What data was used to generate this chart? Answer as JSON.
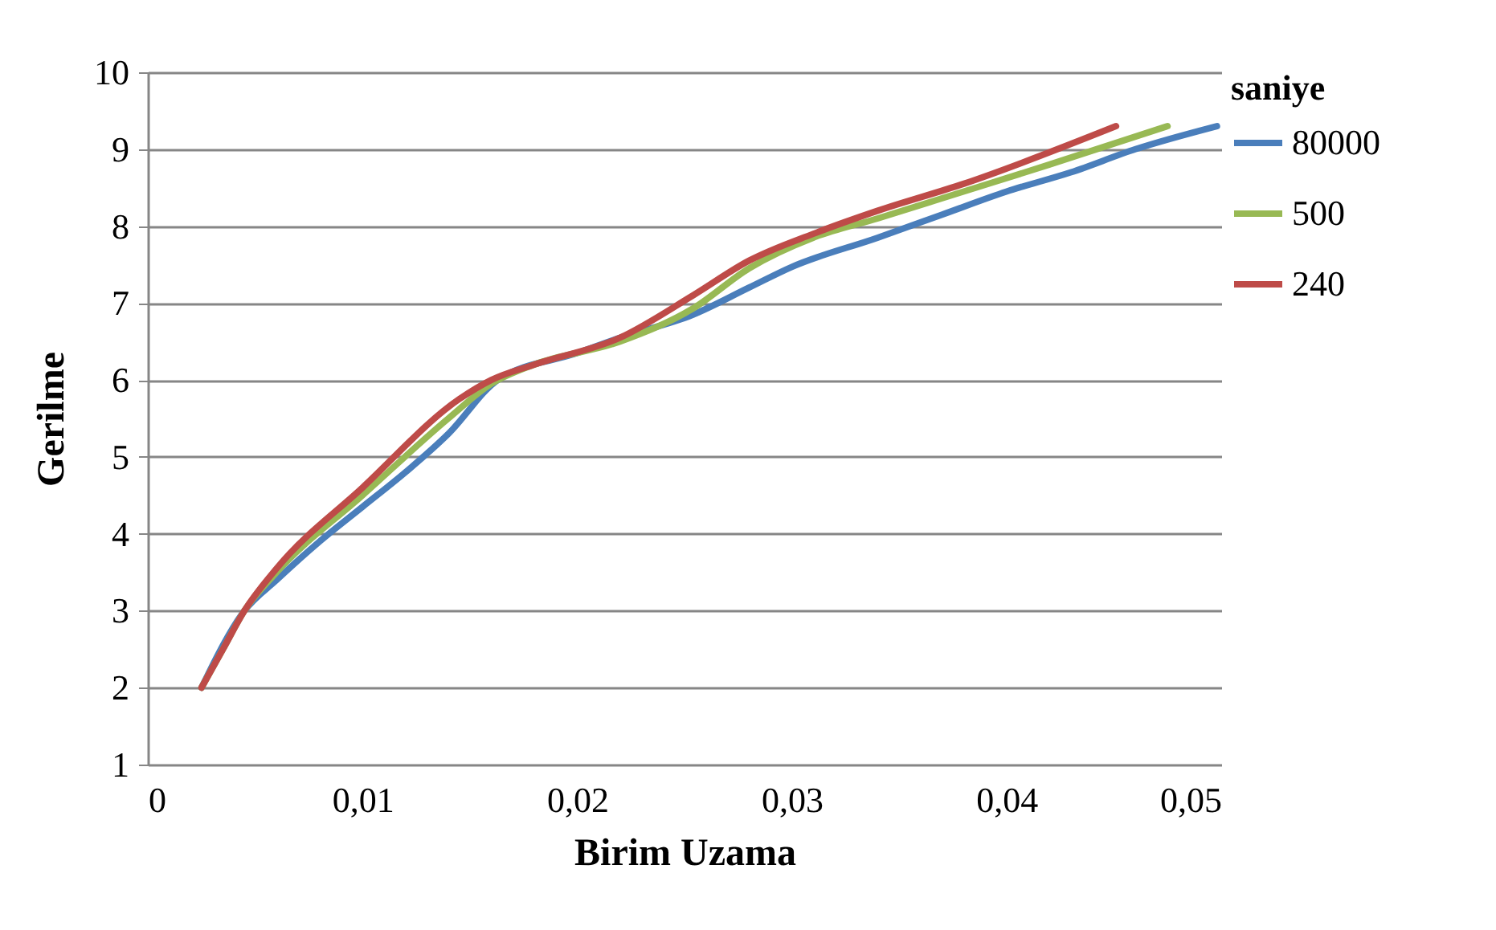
{
  "chart_data": {
    "type": "line",
    "xlabel": "Birim Uzama",
    "ylabel": "Gerilme",
    "legend_title": "saniye",
    "legend": "right",
    "grid": "y",
    "marker": "none",
    "line_style": "solid",
    "xlim": [
      0,
      0.05
    ],
    "xticks": [
      {
        "value": 0,
        "label": "0"
      },
      {
        "value": 0.01,
        "label": "0,01"
      },
      {
        "value": 0.02,
        "label": "0,02"
      },
      {
        "value": 0.03,
        "label": "0,03"
      },
      {
        "value": 0.04,
        "label": "0,04"
      },
      {
        "value": 0.05,
        "label": "0,05"
      }
    ],
    "ylim": [
      1,
      10
    ],
    "yticks": [
      1,
      2,
      3,
      4,
      5,
      6,
      7,
      8,
      9,
      10
    ],
    "series": [
      {
        "name": "80000",
        "color": "#4a7ebb",
        "x": [
          0.0025,
          0.0045,
          0.006,
          0.008,
          0.01,
          0.012,
          0.014,
          0.0163,
          0.02,
          0.022,
          0.0254,
          0.028,
          0.03,
          0.034,
          0.037,
          0.04,
          0.043,
          0.046,
          0.0498
        ],
        "values": [
          2,
          3,
          3.4,
          3.9,
          4.35,
          4.8,
          5.3,
          6.0,
          6.35,
          6.55,
          6.85,
          7.2,
          7.47,
          7.85,
          8.15,
          8.45,
          8.7,
          9.0,
          9.3
        ]
      },
      {
        "name": "500",
        "color": "#98b954",
        "x": [
          0.0025,
          0.0035,
          0.0045,
          0.006,
          0.01,
          0.014,
          0.016,
          0.018,
          0.022,
          0.0254,
          0.028,
          0.031,
          0.034,
          0.038,
          0.042,
          0.0475
        ],
        "values": [
          2,
          2.5,
          3,
          3.5,
          4.5,
          5.5,
          5.95,
          6.2,
          6.5,
          6.93,
          7.45,
          7.85,
          8.1,
          8.45,
          8.8,
          9.3
        ]
      },
      {
        "name": "240",
        "color": "#be4b48",
        "x": [
          0.0025,
          0.0035,
          0.0045,
          0.006,
          0.01,
          0.0145,
          0.016,
          0.018,
          0.022,
          0.0254,
          0.028,
          0.031,
          0.034,
          0.038,
          0.0451
        ],
        "values": [
          2,
          2.5,
          3,
          3.55,
          4.6,
          5.75,
          6.0,
          6.2,
          6.55,
          7.1,
          7.55,
          7.9,
          8.2,
          8.55,
          9.3
        ]
      }
    ]
  }
}
